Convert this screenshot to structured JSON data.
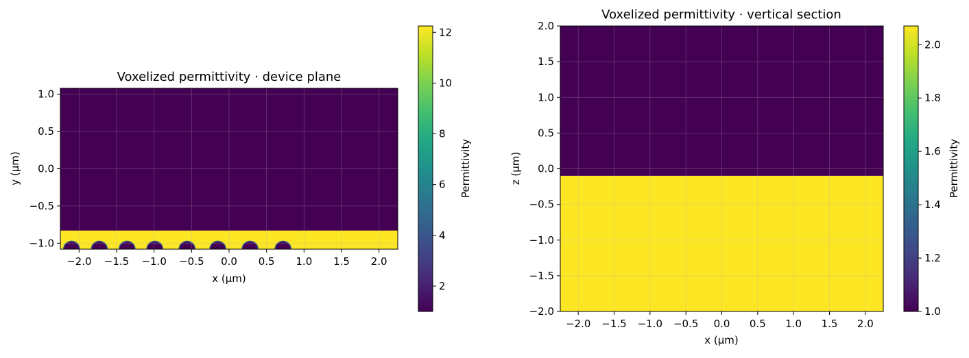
{
  "chart_data": [
    {
      "type": "heatmap",
      "title": "Voxelized permittivity · device plane",
      "xlabel": "x (µm)",
      "ylabel": "y (µm)",
      "xlim": [
        -2.25,
        2.25
      ],
      "ylim": [
        -1.08,
        1.08
      ],
      "xticks": [
        "−2.0",
        "−1.5",
        "−1.0",
        "−0.5",
        "0.0",
        "0.5",
        "1.0",
        "1.5",
        "2.0"
      ],
      "yticks": [
        "−1.0",
        "−0.5",
        "0.0",
        "0.5",
        "1.0"
      ],
      "xtick_values": [
        -2.0,
        -1.5,
        -1.0,
        -0.5,
        0.0,
        0.5,
        1.0,
        1.5,
        2.0
      ],
      "ytick_values": [
        -1.0,
        -0.5,
        0.0,
        0.5,
        1.0
      ],
      "grid": true,
      "colormap": "viridis",
      "background_permittivity": 1.0,
      "slab": {
        "y_from": -1.08,
        "y_to": -0.83,
        "permittivity": 12.25
      },
      "hemispheres": {
        "centers_x": [
          -2.1,
          -1.73,
          -1.36,
          -0.99,
          -0.56,
          -0.15,
          0.28,
          0.72
        ],
        "radius": 0.1,
        "base_y": -1.08,
        "permittivity": 1.0
      },
      "colorbar": {
        "label": "Permittivity",
        "min": 1.0,
        "max": 12.25,
        "ticks": [
          "2",
          "4",
          "6",
          "8",
          "10",
          "12"
        ],
        "tick_values": [
          2,
          4,
          6,
          8,
          10,
          12
        ]
      }
    },
    {
      "type": "heatmap",
      "title": "Voxelized permittivity · vertical section",
      "xlabel": "x (µm)",
      "ylabel": "z (µm)",
      "xlim": [
        -2.25,
        2.25
      ],
      "ylim": [
        -2.0,
        2.0
      ],
      "xticks": [
        "−2.0",
        "−1.5",
        "−1.0",
        "−0.5",
        "0.0",
        "0.5",
        "1.0",
        "1.5",
        "2.0"
      ],
      "yticks": [
        "−2.0",
        "−1.5",
        "−1.0",
        "−0.5",
        "0.0",
        "0.5",
        "1.0",
        "1.5",
        "2.0"
      ],
      "xtick_values": [
        -2.0,
        -1.5,
        -1.0,
        -0.5,
        0.0,
        0.5,
        1.0,
        1.5,
        2.0
      ],
      "ytick_values": [
        -2.0,
        -1.5,
        -1.0,
        -0.5,
        0.0,
        0.5,
        1.0,
        1.5,
        2.0
      ],
      "grid": true,
      "colormap": "viridis",
      "regions": [
        {
          "z_from": -0.1,
          "z_to": 2.0,
          "permittivity": 1.0
        },
        {
          "z_from": -2.0,
          "z_to": -0.1,
          "permittivity": 2.07
        }
      ],
      "colorbar": {
        "label": "Permittivity",
        "min": 1.0,
        "max": 2.07,
        "ticks": [
          "1.0",
          "1.2",
          "1.4",
          "1.6",
          "1.8",
          "2.0"
        ],
        "tick_values": [
          1.0,
          1.2,
          1.4,
          1.6,
          1.8,
          2.0
        ]
      }
    }
  ]
}
